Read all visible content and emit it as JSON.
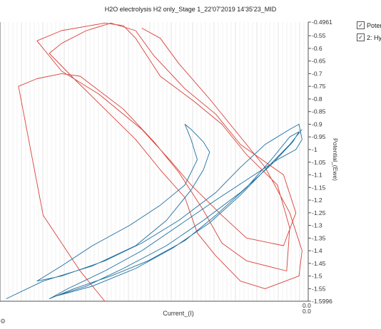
{
  "window": {
    "title": "H2O electrolysis H2 only_Stage 1_22'07'2019 14'35'23_MID"
  },
  "legend": {
    "items": [
      {
        "label": "Poter",
        "checked": true,
        "check_glyph": "✓",
        "color": "#d9423a"
      },
      {
        "label": "2: Hy",
        "checked": true,
        "check_glyph": "✓",
        "color": "#1f6fa0"
      }
    ]
  },
  "icons": {
    "status": "settings-icon"
  },
  "chart_data": {
    "type": "line",
    "title": "H2O electrolysis H2 only_Stage 1_22'07'2019 14'35'23_MID",
    "xlabel": "Current_(I)",
    "ylabel": "Potential_(Ewe)",
    "x_tick_labels": [
      "0.0",
      "0.0"
    ],
    "ylim": [
      -1.5996,
      -0.4961
    ],
    "y_ticks": [
      -0.4961,
      -0.55,
      -0.6,
      -0.65,
      -0.7,
      -0.75,
      -0.8,
      -0.85,
      -0.9,
      -0.95,
      -1,
      -1.05,
      -1.1,
      -1.15,
      -1.2,
      -1.25,
      -1.3,
      -1.35,
      -1.4,
      -1.45,
      -1.5,
      -1.55,
      -1.5996
    ],
    "y_tick_labels": [
      "-0.4961",
      "-0.55",
      "-0.6",
      "-0.65",
      "-0.7",
      "-0.75",
      "-0.8",
      "-0.85",
      "-0.9",
      "-0.95",
      "-1",
      "-1.05",
      "-1.1",
      "-1.15",
      "-1.2",
      "-1.25",
      "-1.3",
      "-1.35",
      "-1.4",
      "-1.45",
      "-1.5",
      "-1.55",
      "-1.5996"
    ],
    "grid": "vertical",
    "legend_placement": "right",
    "series": [
      {
        "name": "Poter",
        "color": "#d9423a",
        "points": [
          [
            0.34,
            -1.5996
          ],
          [
            0.26,
            -1.48
          ],
          [
            0.14,
            -1.26
          ],
          [
            0.06,
            -0.75
          ],
          [
            0.12,
            -0.72
          ],
          [
            0.2,
            -0.7
          ],
          [
            0.26,
            -0.71
          ],
          [
            0.4,
            -0.84
          ],
          [
            0.5,
            -0.97
          ],
          [
            0.58,
            -1.09
          ],
          [
            0.66,
            -1.24
          ],
          [
            0.72,
            -1.37
          ],
          [
            0.8,
            -1.44
          ],
          [
            0.93,
            -1.48
          ],
          [
            0.94,
            -1.31
          ],
          [
            0.9,
            -1.14
          ],
          [
            0.8,
            -1.02
          ],
          [
            0.72,
            -0.9
          ],
          [
            0.63,
            -0.81
          ],
          [
            0.52,
            -0.71
          ],
          [
            0.44,
            -0.56
          ],
          [
            0.4,
            -0.51
          ],
          [
            0.34,
            -0.5
          ],
          [
            0.2,
            -0.53
          ],
          [
            0.12,
            -0.57
          ],
          [
            0.2,
            -0.69
          ],
          [
            0.32,
            -0.78
          ],
          [
            0.46,
            -0.92
          ],
          [
            0.55,
            -1.04
          ],
          [
            0.62,
            -1.14
          ],
          [
            0.72,
            -1.26
          ],
          [
            0.8,
            -1.35
          ],
          [
            0.92,
            -1.38
          ],
          [
            0.96,
            -1.25
          ],
          [
            0.92,
            -1.1
          ],
          [
            0.78,
            -0.98
          ],
          [
            0.7,
            -0.86
          ],
          [
            0.6,
            -0.76
          ],
          [
            0.5,
            -0.63
          ],
          [
            0.44,
            -0.53
          ],
          [
            0.36,
            -0.5
          ],
          [
            0.28,
            -0.53
          ],
          [
            0.2,
            -0.58
          ],
          [
            0.16,
            -0.62
          ],
          [
            0.24,
            -0.72
          ],
          [
            0.34,
            -0.84
          ],
          [
            0.44,
            -0.96
          ],
          [
            0.52,
            -1.08
          ],
          [
            0.6,
            -1.19
          ],
          [
            0.64,
            -1.33
          ],
          [
            0.7,
            -1.42
          ],
          [
            0.78,
            -1.52
          ],
          [
            0.86,
            -1.55
          ],
          [
            0.97,
            -1.5
          ],
          [
            0.98,
            -1.4
          ],
          [
            0.94,
            -1.25
          ],
          [
            0.86,
            -1.07
          ],
          [
            0.76,
            -0.92
          ],
          [
            0.68,
            -0.8
          ],
          [
            0.58,
            -0.66
          ],
          [
            0.52,
            -0.56
          ],
          [
            0.46,
            -0.52
          ]
        ]
      },
      {
        "name": "2: Hy",
        "color": "#1f6fa0",
        "points": [
          [
            0.02,
            -1.59
          ],
          [
            0.14,
            -1.52
          ],
          [
            0.3,
            -1.46
          ],
          [
            0.44,
            -1.38
          ],
          [
            0.54,
            -1.28
          ],
          [
            0.62,
            -1.16
          ],
          [
            0.66,
            -1.08
          ],
          [
            0.68,
            -1.01
          ],
          [
            0.66,
            -0.97
          ],
          [
            0.62,
            -0.92
          ],
          [
            0.6,
            -0.9
          ],
          [
            0.62,
            -0.96
          ],
          [
            0.64,
            -1.04
          ],
          [
            0.6,
            -1.14
          ],
          [
            0.52,
            -1.22
          ],
          [
            0.42,
            -1.3
          ],
          [
            0.3,
            -1.38
          ],
          [
            0.2,
            -1.46
          ],
          [
            0.12,
            -1.52
          ],
          [
            0.2,
            -1.5
          ],
          [
            0.34,
            -1.44
          ],
          [
            0.46,
            -1.37
          ],
          [
            0.58,
            -1.28
          ],
          [
            0.7,
            -1.17
          ],
          [
            0.78,
            -1.07
          ],
          [
            0.86,
            -0.98
          ],
          [
            0.94,
            -0.92
          ],
          [
            0.97,
            -0.9
          ],
          [
            0.98,
            -0.96
          ],
          [
            0.96,
            -1.0
          ],
          [
            0.9,
            -1.04
          ],
          [
            0.8,
            -1.12
          ],
          [
            0.7,
            -1.2
          ],
          [
            0.58,
            -1.3
          ],
          [
            0.46,
            -1.4
          ],
          [
            0.34,
            -1.48
          ],
          [
            0.22,
            -1.55
          ],
          [
            0.16,
            -1.59
          ],
          [
            0.24,
            -1.55
          ],
          [
            0.36,
            -1.5
          ],
          [
            0.48,
            -1.44
          ],
          [
            0.6,
            -1.36
          ],
          [
            0.7,
            -1.26
          ],
          [
            0.8,
            -1.15
          ],
          [
            0.88,
            -1.04
          ],
          [
            0.94,
            -0.95
          ],
          [
            0.97,
            -0.93
          ],
          [
            0.95,
            -0.97
          ],
          [
            0.88,
            -1.06
          ],
          [
            0.78,
            -1.17
          ],
          [
            0.66,
            -1.28
          ],
          [
            0.54,
            -1.38
          ],
          [
            0.4,
            -1.47
          ],
          [
            0.28,
            -1.54
          ],
          [
            0.18,
            -1.58
          ],
          [
            0.3,
            -1.54
          ],
          [
            0.44,
            -1.47
          ],
          [
            0.56,
            -1.39
          ],
          [
            0.68,
            -1.29
          ],
          [
            0.78,
            -1.18
          ],
          [
            0.86,
            -1.08
          ],
          [
            0.94,
            -0.98
          ],
          [
            0.98,
            -0.92
          ]
        ]
      }
    ]
  }
}
